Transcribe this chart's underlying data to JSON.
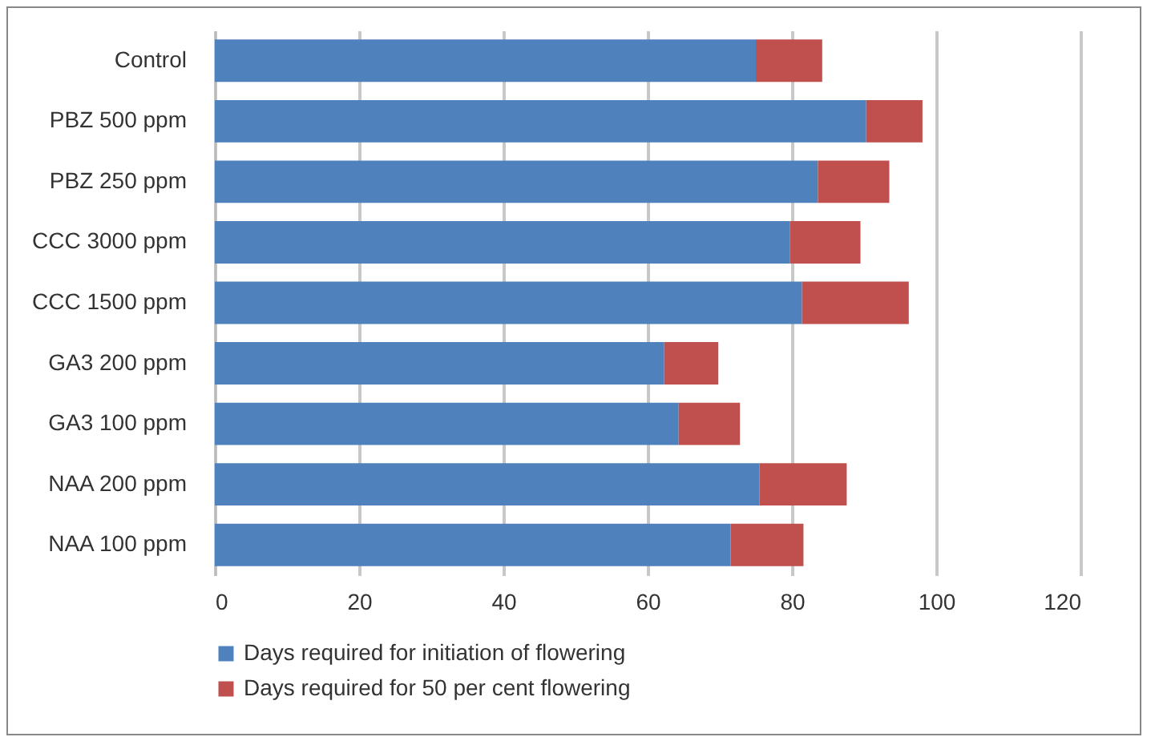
{
  "chart_data": {
    "type": "bar",
    "orientation": "horizontal",
    "stacked": true,
    "categories": [
      "Control",
      "PBZ  500 ppm",
      "PBZ  250 ppm",
      "CCC  3000 ppm",
      "CCC  1500 ppm",
      "GA3   200 ppm",
      "GA3   100 ppm",
      "NAA  200 ppm",
      "NAA  100 ppm"
    ],
    "series": [
      {
        "name": "Days required for initiation of flowering",
        "color": "#4f81bd",
        "values": [
          75,
          90.3,
          83.6,
          79.7,
          81.4,
          62.3,
          64.3,
          75.5,
          71.5
        ]
      },
      {
        "name": "Days required for 50 per cent  flowering",
        "color": "#c0504d",
        "values": [
          9.2,
          7.8,
          9.9,
          9.8,
          14.8,
          7.5,
          8.5,
          12.1,
          10.1
        ]
      }
    ],
    "xlim": [
      0,
      120
    ],
    "xticks": [
      0,
      20,
      40,
      60,
      80,
      100,
      120
    ],
    "grid": "x",
    "legend": "bottom"
  }
}
